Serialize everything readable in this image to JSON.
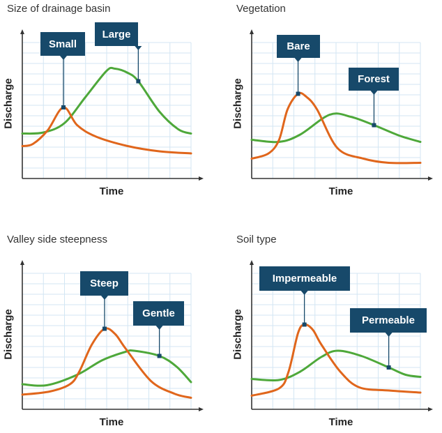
{
  "colors": {
    "small_or_fast": "#e0661c",
    "large_or_slow": "#4ea83a",
    "label_box": "#17496a",
    "grid": "#d3e6f3",
    "axis": "#333333"
  },
  "chart_data": [
    {
      "type": "line",
      "title": "Size of drainage basin",
      "xlabel": "Time",
      "ylabel": "Discharge",
      "xlim": [
        0,
        8
      ],
      "ylim": [
        0,
        13
      ],
      "grid": true,
      "series": [
        {
          "name": "Large",
          "color": "#4ea83a",
          "label_at_t": 5.5,
          "points": [
            [
              0,
              4.3
            ],
            [
              1,
              4.4
            ],
            [
              2,
              5.3
            ],
            [
              3,
              7.8
            ],
            [
              4,
              10.3
            ],
            [
              4.4,
              10.5
            ],
            [
              5,
              10.1
            ],
            [
              5.5,
              9.3
            ],
            [
              6.5,
              6.4
            ],
            [
              7.4,
              4.7
            ],
            [
              8,
              4.3
            ]
          ]
        },
        {
          "name": "Small",
          "color": "#e0661c",
          "label_at_t": 1.95,
          "points": [
            [
              0,
              3.1
            ],
            [
              0.5,
              3.3
            ],
            [
              1.2,
              4.6
            ],
            [
              1.95,
              6.8
            ],
            [
              2.6,
              5.1
            ],
            [
              3.5,
              4.0
            ],
            [
              5,
              3.1
            ],
            [
              6.5,
              2.6
            ],
            [
              8,
              2.4
            ]
          ]
        }
      ]
    },
    {
      "type": "line",
      "title": "Vegetation",
      "xlabel": "Time",
      "ylabel": "Discharge",
      "xlim": [
        0,
        8
      ],
      "ylim": [
        0,
        13
      ],
      "grid": true,
      "series": [
        {
          "name": "Forest",
          "color": "#4ea83a",
          "label_at_t": 5.8,
          "points": [
            [
              0,
              3.7
            ],
            [
              1.3,
              3.5
            ],
            [
              2.3,
              4.2
            ],
            [
              3.7,
              6.1
            ],
            [
              4.7,
              5.9
            ],
            [
              5.8,
              5.1
            ],
            [
              7,
              4.1
            ],
            [
              8,
              3.5
            ]
          ]
        },
        {
          "name": "Bare",
          "color": "#e0661c",
          "label_at_t": 2.2,
          "points": [
            [
              0,
              1.9
            ],
            [
              0.8,
              2.4
            ],
            [
              1.3,
              3.7
            ],
            [
              1.7,
              6.6
            ],
            [
              2.2,
              8.1
            ],
            [
              2.6,
              7.8
            ],
            [
              3.1,
              6.6
            ],
            [
              4.07,
              2.9
            ],
            [
              5.3,
              1.9
            ],
            [
              6.5,
              1.5
            ],
            [
              8,
              1.5
            ]
          ]
        }
      ]
    },
    {
      "type": "line",
      "title": "Valley side steepness",
      "xlabel": "Time",
      "ylabel": "Discharge",
      "xlim": [
        0,
        8
      ],
      "ylim": [
        0,
        13
      ],
      "grid": true,
      "series": [
        {
          "name": "Gentle",
          "color": "#4ea83a",
          "label_at_t": 6.5,
          "points": [
            [
              0,
              2.4
            ],
            [
              1.16,
              2.3
            ],
            [
              2.6,
              3.3
            ],
            [
              3.8,
              4.7
            ],
            [
              4.9,
              5.5
            ],
            [
              5.3,
              5.6
            ],
            [
              6.5,
              5.1
            ],
            [
              7.3,
              4.1
            ],
            [
              8,
              2.6
            ]
          ]
        },
        {
          "name": "Steep",
          "color": "#e0661c",
          "label_at_t": 3.9,
          "points": [
            [
              0,
              1.4
            ],
            [
              1.3,
              1.7
            ],
            [
              2.26,
              2.4
            ],
            [
              2.7,
              3.6
            ],
            [
              3.3,
              6.2
            ],
            [
              3.9,
              7.7
            ],
            [
              4.4,
              7.2
            ],
            [
              4.9,
              5.8
            ],
            [
              6.1,
              2.7
            ],
            [
              7.2,
              1.5
            ],
            [
              8,
              1.1
            ]
          ]
        }
      ]
    },
    {
      "type": "line",
      "title": "Soil type",
      "xlabel": "Time",
      "ylabel": "Discharge",
      "xlim": [
        0,
        8
      ],
      "ylim": [
        0,
        13
      ],
      "grid": true,
      "series": [
        {
          "name": "Permeable",
          "color": "#4ea83a",
          "label_at_t": 6.5,
          "points": [
            [
              0,
              2.9
            ],
            [
              1.3,
              2.8
            ],
            [
              2.3,
              3.6
            ],
            [
              3.3,
              5.0
            ],
            [
              4.07,
              5.6
            ],
            [
              5.2,
              5.1
            ],
            [
              6.5,
              4.0
            ],
            [
              7.3,
              3.3
            ],
            [
              8,
              3.1
            ]
          ]
        },
        {
          "name": "Impermeable",
          "color": "#e0661c",
          "label_at_t": 2.5,
          "points": [
            [
              0,
              1.3
            ],
            [
              1.3,
              2.0
            ],
            [
              1.75,
              3.6
            ],
            [
              2.2,
              7.3
            ],
            [
              2.5,
              8.1
            ],
            [
              2.9,
              7.6
            ],
            [
              3.3,
              6.2
            ],
            [
              4.2,
              3.6
            ],
            [
              5.1,
              2.1
            ],
            [
              6.5,
              1.8
            ],
            [
              8,
              1.6
            ]
          ]
        }
      ]
    }
  ]
}
